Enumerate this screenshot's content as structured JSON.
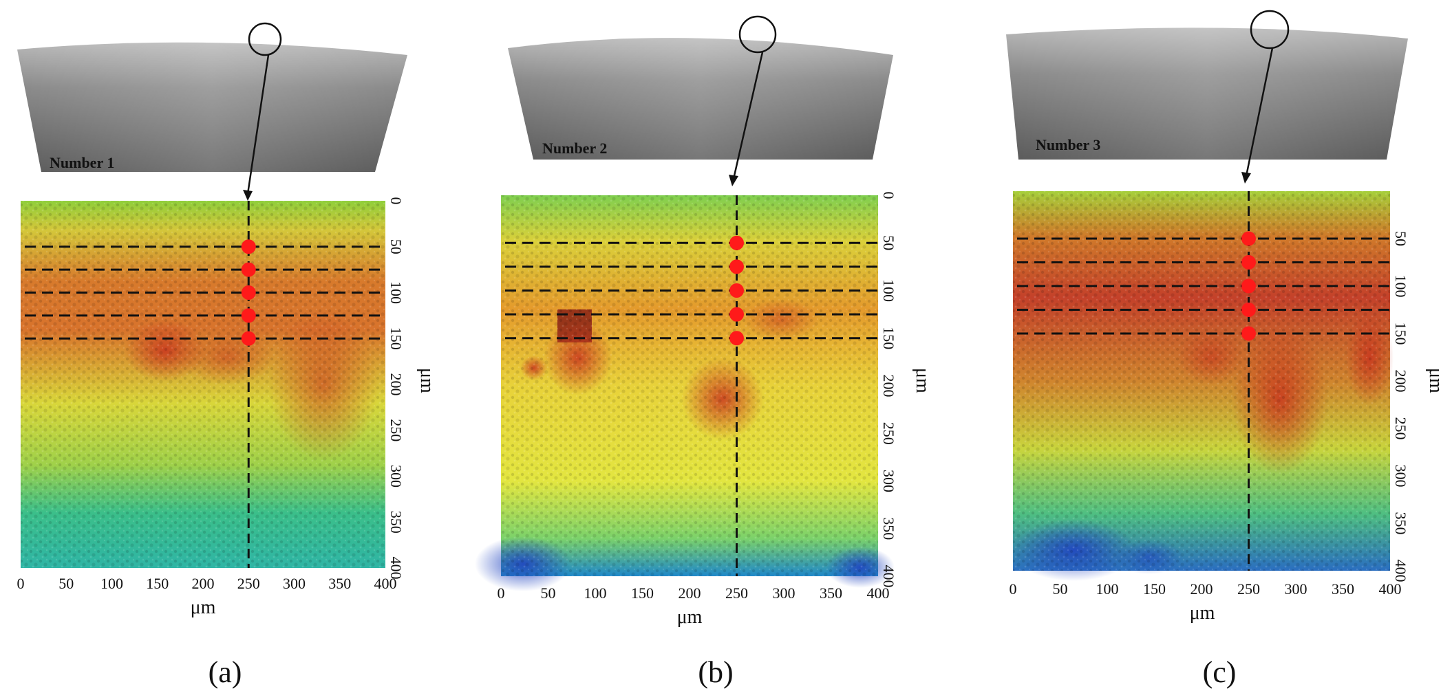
{
  "panels": [
    {
      "caption": "(a)",
      "sample_label": "Number 1",
      "x_ticks": [
        "0",
        "50",
        "100",
        "150",
        "200",
        "250",
        "300",
        "350",
        "400"
      ],
      "y_ticks": [
        "0",
        "50",
        "100",
        "150",
        "200",
        "250",
        "300",
        "350",
        "400"
      ],
      "x_unit": "μm",
      "y_unit": "μm",
      "measurement_line_x_um": 250,
      "measurement_depths_um": [
        50,
        75,
        100,
        125,
        150
      ]
    },
    {
      "caption": "(b)",
      "sample_label": "Number 2",
      "x_ticks": [
        "0",
        "50",
        "100",
        "150",
        "200",
        "250",
        "300",
        "350",
        "400"
      ],
      "y_ticks": [
        "0",
        "50",
        "100",
        "150",
        "200",
        "250",
        "300",
        "350",
        "400"
      ],
      "x_unit": "μm",
      "y_unit": "μm",
      "measurement_line_x_um": 250,
      "measurement_depths_um": [
        50,
        75,
        100,
        125,
        150
      ]
    },
    {
      "caption": "(c)",
      "sample_label": "Number 3",
      "x_ticks": [
        "0",
        "50",
        "100",
        "150",
        "200",
        "250",
        "300",
        "350",
        "400"
      ],
      "y_ticks": [
        "50",
        "100",
        "150",
        "200",
        "250",
        "300",
        "350",
        "400"
      ],
      "x_unit": "μm",
      "y_unit": "μm",
      "measurement_line_x_um": 250,
      "measurement_depths_um": [
        50,
        75,
        100,
        125,
        150
      ]
    }
  ],
  "colors": {
    "measurement_point": "#ff1a1a",
    "guide_line": "#111111",
    "surface_low": "#1a3fb5",
    "surface_mid": "#e6e32a",
    "surface_high": "#c0391b"
  }
}
